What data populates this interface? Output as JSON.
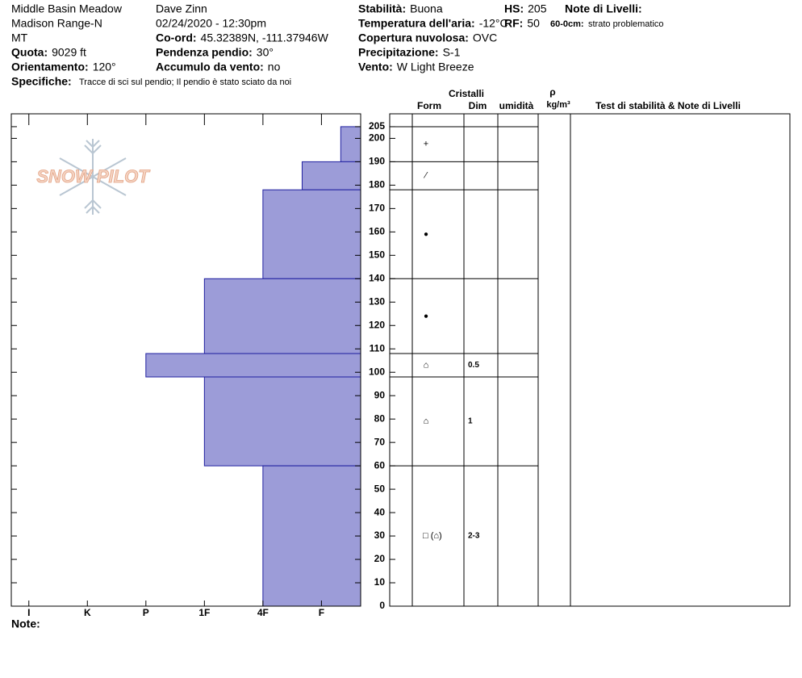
{
  "header": {
    "site": "Middle Basin Meadow",
    "range": "Madison Range-N",
    "state": "MT",
    "observer": "Dave Zinn",
    "datetime": "02/24/2020 - 12:30pm",
    "fields": [
      {
        "label": "Quota:",
        "value": "9029 ft"
      },
      {
        "label": "Orientamento:",
        "value": "120°"
      },
      {
        "label": "Co-ord:",
        "value": "45.32389N, -111.37946W"
      },
      {
        "label": "Pendenza pendio:",
        "value": "30°"
      },
      {
        "label": "Accumulo da vento:",
        "value": "no"
      },
      {
        "label": "Stabilità:",
        "value": "Buona"
      },
      {
        "label": "Temperatura dell'aria:",
        "value": "-12°C"
      },
      {
        "label": "Copertura nuvolosa:",
        "value": "OVC"
      },
      {
        "label": "Precipitazione:",
        "value": "S-1"
      },
      {
        "label": "Vento:",
        "value": "W Light Breeze"
      },
      {
        "label": "HS:",
        "value": 205
      },
      {
        "label": "RF:",
        "value": 50
      }
    ],
    "specifics_label": "Specifiche:",
    "specifics": "Tracce di sci sul pendio;  Il pendio è stato sciato da noi",
    "layer_notes_title": "Note di Livelli:",
    "layer_note_label": "60-0cm:",
    "layer_note": "strato problematico"
  },
  "chart_data": {
    "type": "snow-profile",
    "logo": "SNOW PILOT",
    "columns": {
      "crystals": "Cristalli",
      "form": "Form",
      "size": "Dim",
      "moisture": "umidità",
      "density": "ρ",
      "density_unit": "kg/m³",
      "tests": "Test di stabilità & Note di Livelli"
    },
    "color": "#9c9cd8",
    "xlim": [
      6.3,
      0.33
    ],
    "xticks": [
      {
        "value": 6,
        "label": "I"
      },
      {
        "value": 5,
        "label": "K"
      },
      {
        "value": 4,
        "label": "P"
      },
      {
        "value": 3,
        "label": "1F"
      },
      {
        "value": 2,
        "label": "4F"
      },
      {
        "value": 1,
        "label": "F"
      }
    ],
    "ylim": [
      0,
      210.5
    ],
    "yticks": [
      0,
      10,
      20,
      30,
      40,
      50,
      60,
      70,
      80,
      90,
      100,
      110,
      120,
      130,
      140,
      150,
      160,
      170,
      180,
      190,
      200,
      205
    ],
    "layers": [
      {
        "bottom": 190,
        "top": 205,
        "hardness": 0.67,
        "form": "+"
      },
      {
        "bottom": 178,
        "top": 190,
        "hardness": 1.33,
        "form": "⁄"
      },
      {
        "bottom": 140,
        "top": 178,
        "hardness": 2,
        "form": "●"
      },
      {
        "bottom": 108,
        "top": 140,
        "hardness": 3,
        "form": "●"
      },
      {
        "bottom": 98,
        "top": 108,
        "hardness": 4,
        "form": "⌂",
        "size": "0.5"
      },
      {
        "bottom": 60,
        "top": 98,
        "hardness": 3,
        "form": "⌂",
        "size": "1"
      },
      {
        "bottom": 0,
        "top": 60,
        "hardness": 2,
        "form": "□ (⌂)",
        "size": "2-3"
      }
    ],
    "note_label": "Note:"
  }
}
